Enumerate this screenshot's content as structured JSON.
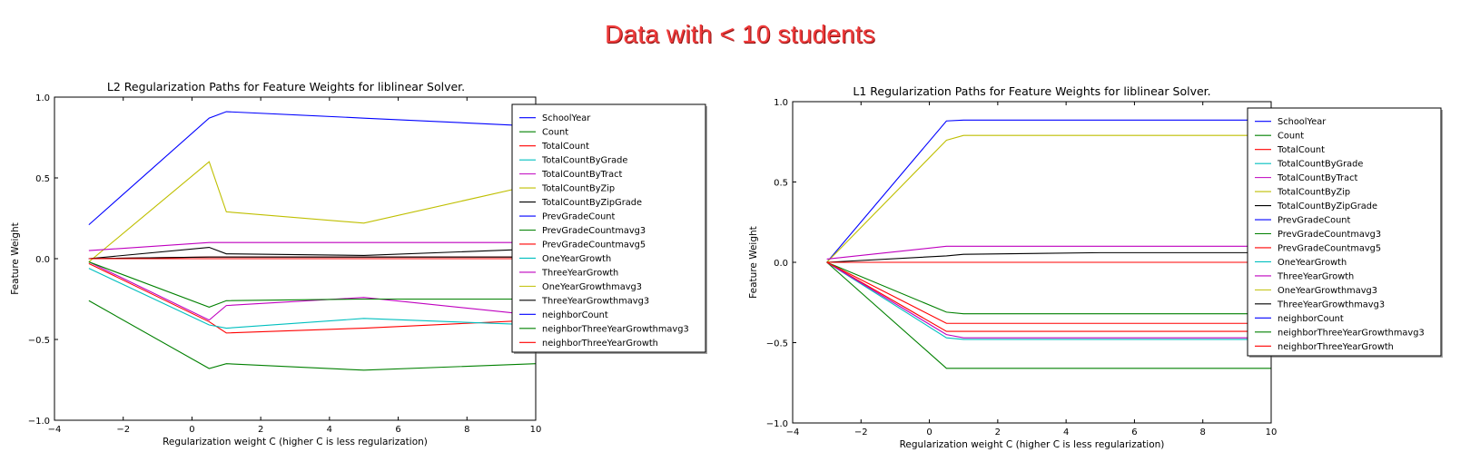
{
  "banner": "Data with < 10 students",
  "chart_data": [
    {
      "type": "line",
      "title": "L2 Regularization Paths for Feature Weights for liblinear Solver.",
      "xlabel": "Regularization weight C (higher C is less regularization)",
      "ylabel": "Feature Weight",
      "xlim": [
        -4,
        10
      ],
      "ylim": [
        -1.0,
        1.0
      ],
      "xticks": [
        -4,
        -2,
        0,
        2,
        4,
        6,
        8,
        10
      ],
      "yticks": [
        -1.0,
        -0.5,
        0.0,
        0.5,
        1.0
      ],
      "xtick_labels": [
        "−4",
        "−2",
        "0",
        "2",
        "4",
        "6",
        "8",
        "10"
      ],
      "ytick_labels": [
        "−1.0",
        "−0.5",
        "0.0",
        "0.5",
        "1.0"
      ],
      "legend": "top-right",
      "x": [
        -3,
        0.5,
        1,
        5,
        10
      ],
      "series": [
        {
          "name": "SchoolYear",
          "color": "#0000ff",
          "values": [
            0.21,
            0.87,
            0.91,
            0.87,
            0.82
          ]
        },
        {
          "name": "Count",
          "color": "#008000",
          "values": [
            -0.26,
            -0.68,
            -0.65,
            -0.69,
            -0.65
          ]
        },
        {
          "name": "TotalCount",
          "color": "#ff0000",
          "values": [
            -0.03,
            -0.39,
            -0.46,
            -0.43,
            -0.38
          ]
        },
        {
          "name": "TotalCountByGrade",
          "color": "#00bfbf",
          "values": [
            -0.06,
            -0.41,
            -0.43,
            -0.37,
            -0.41
          ]
        },
        {
          "name": "TotalCountByTract",
          "color": "#bf00bf",
          "values": [
            -0.02,
            -0.38,
            -0.29,
            -0.24,
            -0.35
          ]
        },
        {
          "name": "TotalCountByZip",
          "color": "#bfbf00",
          "values": [
            -0.02,
            0.6,
            0.29,
            0.22,
            0.46
          ]
        },
        {
          "name": "TotalCountByZipGrade",
          "color": "#000000",
          "values": [
            0.0,
            0.07,
            0.03,
            0.02,
            0.06
          ]
        },
        {
          "name": "PrevGradeCount",
          "color": "#0000ff",
          "values": [
            0.0,
            0.0,
            0.0,
            0.0,
            0.0
          ]
        },
        {
          "name": "PrevGradeCountmavg3",
          "color": "#008000",
          "values": [
            -0.02,
            -0.3,
            -0.26,
            -0.25,
            -0.25
          ]
        },
        {
          "name": "PrevGradeCountmavg5",
          "color": "#ff0000",
          "values": [
            0.0,
            0.01,
            0.01,
            0.01,
            0.01
          ]
        },
        {
          "name": "OneYearGrowth",
          "color": "#00bfbf",
          "values": [
            0.0,
            0.0,
            0.0,
            0.0,
            0.0
          ]
        },
        {
          "name": "ThreeYearGrowth",
          "color": "#bf00bf",
          "values": [
            0.05,
            0.1,
            0.1,
            0.1,
            0.1
          ]
        },
        {
          "name": "OneYearGrowthmavg3",
          "color": "#bfbf00",
          "values": [
            0.0,
            0.0,
            0.0,
            0.0,
            0.0
          ]
        },
        {
          "name": "ThreeYearGrowthmavg3",
          "color": "#000000",
          "values": [
            0.0,
            0.01,
            0.01,
            0.01,
            0.01
          ]
        },
        {
          "name": "neighborCount",
          "color": "#0000ff",
          "values": [
            0.0,
            0.0,
            0.0,
            0.0,
            0.0
          ]
        },
        {
          "name": "neighborThreeYearGrowthmavg3",
          "color": "#008000",
          "values": [
            0.0,
            0.0,
            0.0,
            0.0,
            0.0
          ]
        },
        {
          "name": "neighborThreeYearGrowth",
          "color": "#ff0000",
          "values": [
            0.0,
            0.0,
            0.0,
            0.0,
            0.0
          ]
        }
      ]
    },
    {
      "type": "line",
      "title": "L1 Regularization Paths for Feature Weights for liblinear Solver.",
      "xlabel": "Regularization weight C (higher C is less regularization)",
      "ylabel": "Feature Weight",
      "xlim": [
        -4,
        10
      ],
      "ylim": [
        -1.0,
        1.0
      ],
      "xticks": [
        -4,
        -2,
        0,
        2,
        4,
        6,
        8,
        10
      ],
      "yticks": [
        -1.0,
        -0.5,
        0.0,
        0.5,
        1.0
      ],
      "xtick_labels": [
        "−4",
        "−2",
        "0",
        "2",
        "4",
        "6",
        "8",
        "10"
      ],
      "ytick_labels": [
        "−1.0",
        "−0.5",
        "0.0",
        "0.5",
        "1.0"
      ],
      "legend": "top-right",
      "x": [
        -3,
        0.5,
        1,
        5,
        10
      ],
      "series": [
        {
          "name": "SchoolYear",
          "color": "#0000ff",
          "values": [
            0.0,
            0.88,
            0.885,
            0.885,
            0.885
          ]
        },
        {
          "name": "Count",
          "color": "#008000",
          "values": [
            0.0,
            -0.66,
            -0.66,
            -0.66,
            -0.66
          ]
        },
        {
          "name": "TotalCount",
          "color": "#ff0000",
          "values": [
            0.0,
            -0.43,
            -0.43,
            -0.43,
            -0.43
          ]
        },
        {
          "name": "TotalCountByGrade",
          "color": "#00bfbf",
          "values": [
            0.0,
            -0.47,
            -0.48,
            -0.48,
            -0.48
          ]
        },
        {
          "name": "TotalCountByTract",
          "color": "#bf00bf",
          "values": [
            0.0,
            -0.45,
            -0.47,
            -0.47,
            -0.47
          ]
        },
        {
          "name": "TotalCountByZip",
          "color": "#bfbf00",
          "values": [
            0.0,
            0.76,
            0.79,
            0.79,
            0.79
          ]
        },
        {
          "name": "TotalCountByZipGrade",
          "color": "#000000",
          "values": [
            0.0,
            0.04,
            0.05,
            0.06,
            0.06
          ]
        },
        {
          "name": "PrevGradeCount",
          "color": "#0000ff",
          "values": [
            0.0,
            0.0,
            0.0,
            0.0,
            0.0
          ]
        },
        {
          "name": "PrevGradeCountmavg3",
          "color": "#008000",
          "values": [
            0.0,
            -0.31,
            -0.32,
            -0.32,
            -0.32
          ]
        },
        {
          "name": "PrevGradeCountmavg5",
          "color": "#ff0000",
          "values": [
            0.0,
            -0.38,
            -0.38,
            -0.38,
            -0.38
          ]
        },
        {
          "name": "OneYearGrowth",
          "color": "#00bfbf",
          "values": [
            0.0,
            0.0,
            0.0,
            0.0,
            0.0
          ]
        },
        {
          "name": "ThreeYearGrowth",
          "color": "#bf00bf",
          "values": [
            0.02,
            0.1,
            0.1,
            0.1,
            0.1
          ]
        },
        {
          "name": "OneYearGrowthmavg3",
          "color": "#bfbf00",
          "values": [
            0.0,
            0.0,
            0.0,
            0.0,
            0.0
          ]
        },
        {
          "name": "ThreeYearGrowthmavg3",
          "color": "#000000",
          "values": [
            0.0,
            0.0,
            0.0,
            0.0,
            0.0
          ]
        },
        {
          "name": "neighborCount",
          "color": "#0000ff",
          "values": [
            0.0,
            0.0,
            0.0,
            0.0,
            0.0
          ]
        },
        {
          "name": "neighborThreeYearGrowthmavg3",
          "color": "#008000",
          "values": [
            0.0,
            0.0,
            0.0,
            0.0,
            0.0
          ]
        },
        {
          "name": "neighborThreeYearGrowth",
          "color": "#ff0000",
          "values": [
            0.0,
            0.0,
            0.0,
            0.0,
            0.0
          ]
        }
      ]
    }
  ]
}
